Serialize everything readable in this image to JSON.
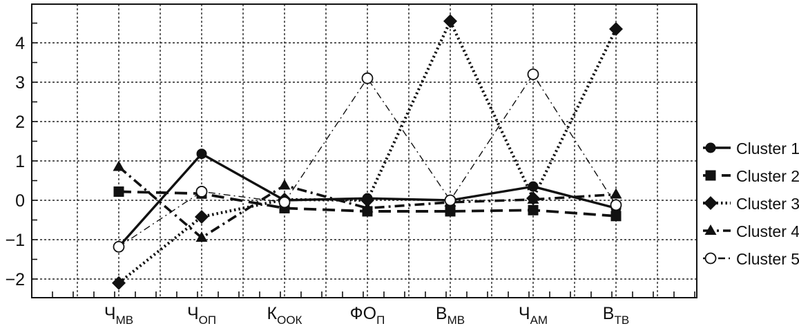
{
  "chart_data": {
    "type": "line",
    "title": "",
    "xlabel": "",
    "ylabel": "",
    "categories": [
      {
        "base": "Ч",
        "sub": "МВ"
      },
      {
        "base": "Ч",
        "sub": "ОП"
      },
      {
        "base": "К",
        "sub": "ООК"
      },
      {
        "base": "ФО",
        "sub": "П"
      },
      {
        "base": "В",
        "sub": "МВ"
      },
      {
        "base": "Ч",
        "sub": "АМ"
      },
      {
        "base": "В",
        "sub": "ТВ"
      }
    ],
    "ylim": [
      -2.5,
      5
    ],
    "yticks": [
      {
        "value": -2,
        "label": "−2"
      },
      {
        "value": -1,
        "label": "−1"
      },
      {
        "value": 0,
        "label": "0"
      },
      {
        "value": 1,
        "label": "1"
      },
      {
        "value": 2,
        "label": "2"
      },
      {
        "value": 3,
        "label": "3"
      },
      {
        "value": 4,
        "label": "4"
      }
    ],
    "grid": true,
    "legend_position": "right",
    "series": [
      {
        "name": "Cluster 1",
        "marker": "circle-filled",
        "line": "solid",
        "values": [
          -1.18,
          1.18,
          0.0,
          0.05,
          0.0,
          0.35,
          -0.2
        ]
      },
      {
        "name": "Cluster 2",
        "marker": "square",
        "line": "dashed",
        "values": [
          0.22,
          0.17,
          -0.2,
          -0.28,
          -0.28,
          -0.25,
          -0.4
        ]
      },
      {
        "name": "Cluster 3",
        "marker": "diamond",
        "line": "dotted",
        "values": [
          -2.1,
          -0.42,
          0.02,
          0.0,
          4.55,
          0.05,
          4.35
        ]
      },
      {
        "name": "Cluster 4",
        "marker": "triangle",
        "line": "dashdot",
        "values": [
          0.85,
          -0.95,
          0.38,
          -0.2,
          -0.05,
          0.02,
          0.15
        ]
      },
      {
        "name": "Cluster 5",
        "marker": "circle-open",
        "line": "dashdot-thin",
        "values": [
          -1.18,
          0.22,
          -0.05,
          3.1,
          0.0,
          3.2,
          -0.12
        ]
      }
    ]
  }
}
